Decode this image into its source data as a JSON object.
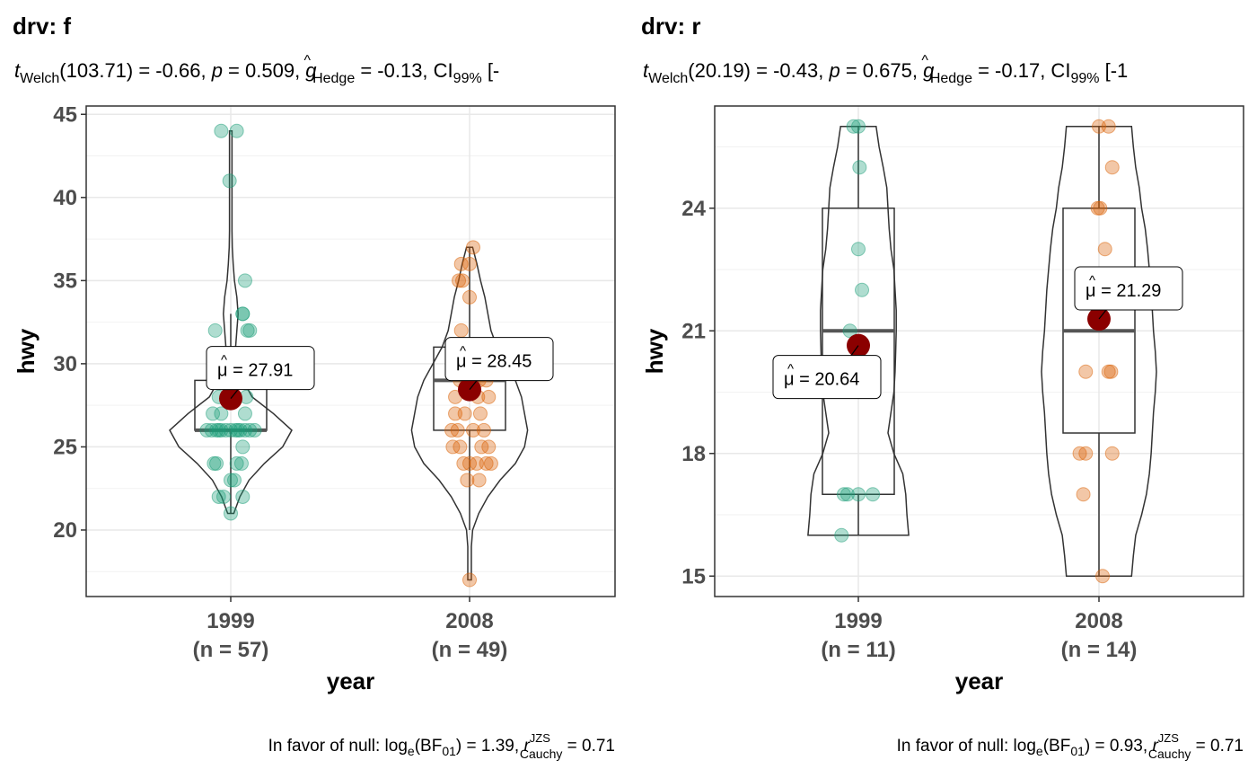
{
  "chart_data": [
    {
      "type": "violin-box-scatter",
      "title": "drv: f",
      "subtitle": {
        "t_label": "t",
        "t_sub": "Welch",
        "stat": "(103.71) = -0.66, ",
        "p_label": "p",
        "p_val": " = 0.509, ",
        "g_label": "g",
        "g_hat": "^",
        "g_sub": "Hedge",
        "g_val": " = -0.13, CI",
        "ci_sub": "99%",
        "ci_tail": " [-"
      },
      "caption": {
        "prefix": "In favor of null: log",
        "log_sub": "e",
        "bf": "(BF",
        "bf_sub": "01",
        "bf_val": ") = 1.39, ",
        "r": "r",
        "r_sup": "JZS",
        "r_sub": "Cauchy",
        "r_val": " = 0.71"
      },
      "xlabel": "year",
      "ylabel": "hwy",
      "ylim": [
        16,
        45.5
      ],
      "yticks": [
        20,
        25,
        30,
        35,
        40,
        45
      ],
      "categories": [
        "1999",
        "2008"
      ],
      "category_n": [
        "(n = 57)",
        "(n = 49)"
      ],
      "colors": [
        "#1B9E77",
        "#D95F02"
      ],
      "mean_color": "#8B0000",
      "groups": [
        {
          "name": "1999",
          "box": {
            "q1": 26,
            "median": 26,
            "q3": 29,
            "lower": 21,
            "upper": 33
          },
          "mean": 27.91,
          "mean_label": "27.91",
          "violin": [
            [
              21,
              0.05
            ],
            [
              22,
              0.15
            ],
            [
              23,
              0.3
            ],
            [
              24,
              0.55
            ],
            [
              25,
              0.85
            ],
            [
              26,
              1.0
            ],
            [
              27,
              0.7
            ],
            [
              28,
              0.35
            ],
            [
              29,
              0.2
            ],
            [
              30,
              0.1
            ],
            [
              31,
              0.08
            ],
            [
              32,
              0.1
            ],
            [
              33,
              0.12
            ],
            [
              34,
              0.1
            ],
            [
              35,
              0.06
            ],
            [
              36,
              0.04
            ],
            [
              37,
              0.025
            ],
            [
              38,
              0.02
            ],
            [
              39,
              0.02
            ],
            [
              40,
              0.02
            ],
            [
              41,
              0.02
            ],
            [
              42,
              0.02
            ],
            [
              43,
              0.02
            ],
            [
              44,
              0.02
            ]
          ],
          "points": [
            [
              -0.08,
              44
            ],
            [
              0.05,
              44
            ],
            [
              -0.01,
              41
            ],
            [
              0.12,
              35
            ],
            [
              0.1,
              33
            ],
            [
              0.1,
              33
            ],
            [
              0.16,
              32
            ],
            [
              0.14,
              32
            ],
            [
              -0.13,
              32
            ],
            [
              0.05,
              29
            ],
            [
              0.08,
              29
            ],
            [
              -0.05,
              29
            ],
            [
              -0.1,
              28
            ],
            [
              0.13,
              28
            ],
            [
              -0.08,
              27
            ],
            [
              0.12,
              27
            ],
            [
              -0.15,
              27
            ],
            [
              -0.2,
              26
            ],
            [
              -0.16,
              26
            ],
            [
              -0.12,
              26
            ],
            [
              -0.08,
              26
            ],
            [
              -0.04,
              26
            ],
            [
              0.0,
              26
            ],
            [
              0.04,
              26
            ],
            [
              0.08,
              26
            ],
            [
              0.12,
              26
            ],
            [
              0.16,
              26
            ],
            [
              0.2,
              26
            ],
            [
              -0.1,
              26
            ],
            [
              0.06,
              26
            ],
            [
              0.1,
              25
            ],
            [
              -0.12,
              24
            ],
            [
              0.05,
              24
            ],
            [
              0.09,
              24
            ],
            [
              -0.14,
              24
            ],
            [
              0.03,
              23
            ],
            [
              0.0,
              23
            ],
            [
              -0.1,
              22
            ],
            [
              -0.06,
              22
            ],
            [
              0.1,
              22
            ],
            [
              0.0,
              21
            ]
          ]
        },
        {
          "name": "2008",
          "box": {
            "q1": 26,
            "median": 29,
            "q3": 31,
            "lower": 20,
            "upper": 37
          },
          "mean": 28.45,
          "mean_label": "28.45",
          "violin": [
            [
              17,
              0.03
            ],
            [
              18,
              0.03
            ],
            [
              19,
              0.03
            ],
            [
              20,
              0.05
            ],
            [
              21,
              0.15
            ],
            [
              22,
              0.3
            ],
            [
              23,
              0.5
            ],
            [
              24,
              0.75
            ],
            [
              25,
              0.9
            ],
            [
              26,
              0.95
            ],
            [
              27,
              0.9
            ],
            [
              28,
              0.85
            ],
            [
              29,
              0.75
            ],
            [
              30,
              0.6
            ],
            [
              31,
              0.45
            ],
            [
              32,
              0.35
            ],
            [
              33,
              0.3
            ],
            [
              34,
              0.25
            ],
            [
              35,
              0.18
            ],
            [
              36,
              0.12
            ],
            [
              37,
              0.05
            ]
          ],
          "points": [
            [
              0.03,
              37
            ],
            [
              -0.07,
              36
            ],
            [
              0.0,
              36
            ],
            [
              -0.06,
              35
            ],
            [
              -0.09,
              35
            ],
            [
              0.0,
              34
            ],
            [
              -0.07,
              32
            ],
            [
              0.05,
              31
            ],
            [
              0.12,
              31
            ],
            [
              0.15,
              30
            ],
            [
              -0.1,
              30
            ],
            [
              0.08,
              29
            ],
            [
              -0.08,
              29
            ],
            [
              0.14,
              29
            ],
            [
              -0.12,
              28
            ],
            [
              0.07,
              28
            ],
            [
              0.16,
              28
            ],
            [
              -0.12,
              27
            ],
            [
              -0.04,
              27
            ],
            [
              0.09,
              27
            ],
            [
              -0.15,
              26
            ],
            [
              0.12,
              26
            ],
            [
              -0.1,
              26
            ],
            [
              0.03,
              26
            ],
            [
              -0.08,
              25
            ],
            [
              0.1,
              25
            ],
            [
              0.16,
              25
            ],
            [
              -0.14,
              25
            ],
            [
              -0.05,
              24
            ],
            [
              0.0,
              24
            ],
            [
              0.06,
              24
            ],
            [
              0.14,
              24
            ],
            [
              0.18,
              24
            ],
            [
              0.08,
              23
            ],
            [
              -0.02,
              23
            ],
            [
              0.0,
              17
            ]
          ]
        }
      ]
    },
    {
      "type": "violin-box-scatter",
      "title": "drv: r",
      "subtitle": {
        "t_label": "t",
        "t_sub": "Welch",
        "stat": "(20.19) = -0.43, ",
        "p_label": "p",
        "p_val": " = 0.675, ",
        "g_label": "g",
        "g_hat": "^",
        "g_sub": "Hedge",
        "g_val": " = -0.17, CI",
        "ci_sub": "99%",
        "ci_tail": " [-1"
      },
      "caption": {
        "prefix": "In favor of null: log",
        "log_sub": "e",
        "bf": "(BF",
        "bf_sub": "01",
        "bf_val": ") = 0.93, ",
        "r": "r",
        "r_sup": "JZS",
        "r_sub": "Cauchy",
        "r_val": " = 0.71"
      },
      "xlabel": "year",
      "ylabel": "hwy",
      "ylim": [
        14.5,
        26.5
      ],
      "yticks": [
        15,
        18,
        21,
        24
      ],
      "categories": [
        "1999",
        "2008"
      ],
      "category_n": [
        "(n = 11)",
        "(n = 14)"
      ],
      "colors": [
        "#1B9E77",
        "#D95F02"
      ],
      "mean_color": "#8B0000",
      "groups": [
        {
          "name": "1999",
          "box": {
            "q1": 17,
            "median": 21,
            "q3": 24,
            "lower": 16,
            "upper": 26
          },
          "mean": 20.64,
          "mean_label": "20.64",
          "violin": [
            [
              16,
              0.85
            ],
            [
              16.5,
              0.82
            ],
            [
              17,
              0.8
            ],
            [
              17.5,
              0.75
            ],
            [
              18,
              0.6
            ],
            [
              18.5,
              0.5
            ],
            [
              19,
              0.55
            ],
            [
              19.5,
              0.6
            ],
            [
              20,
              0.62
            ],
            [
              20.5,
              0.63
            ],
            [
              21,
              0.64
            ],
            [
              21.5,
              0.64
            ],
            [
              22,
              0.62
            ],
            [
              22.5,
              0.6
            ],
            [
              23,
              0.55
            ],
            [
              23.5,
              0.52
            ],
            [
              24,
              0.5
            ],
            [
              24.5,
              0.48
            ],
            [
              25,
              0.42
            ],
            [
              25.5,
              0.35
            ],
            [
              26,
              0.3
            ]
          ],
          "points": [
            [
              -0.04,
              26
            ],
            [
              0.0,
              26
            ],
            [
              0.01,
              25
            ],
            [
              0.0,
              23
            ],
            [
              0.03,
              22
            ],
            [
              -0.07,
              21
            ],
            [
              -0.12,
              17
            ],
            [
              -0.09,
              17
            ],
            [
              0.0,
              17
            ],
            [
              0.12,
              17
            ],
            [
              -0.14,
              16
            ]
          ]
        },
        {
          "name": "2008",
          "box": {
            "q1": 18.5,
            "median": 21,
            "q3": 24,
            "lower": 15,
            "upper": 26
          },
          "mean": 21.29,
          "mean_label": "21.29",
          "violin": [
            [
              15,
              0.55
            ],
            [
              15.5,
              0.58
            ],
            [
              16,
              0.62
            ],
            [
              16.5,
              0.72
            ],
            [
              17,
              0.8
            ],
            [
              17.5,
              0.85
            ],
            [
              18,
              0.88
            ],
            [
              18.5,
              0.9
            ],
            [
              19,
              0.92
            ],
            [
              19.5,
              0.95
            ],
            [
              20,
              0.97
            ],
            [
              20.5,
              0.95
            ],
            [
              21,
              0.92
            ],
            [
              21.5,
              0.9
            ],
            [
              22,
              0.88
            ],
            [
              22.5,
              0.85
            ],
            [
              23,
              0.82
            ],
            [
              23.5,
              0.78
            ],
            [
              24,
              0.72
            ],
            [
              24.5,
              0.68
            ],
            [
              25,
              0.62
            ],
            [
              25.5,
              0.58
            ],
            [
              26,
              0.55
            ]
          ],
          "points": [
            [
              0.0,
              26
            ],
            [
              0.08,
              26
            ],
            [
              0.11,
              25
            ],
            [
              0.01,
              24
            ],
            [
              -0.01,
              24
            ],
            [
              0.05,
              23
            ],
            [
              -0.11,
              20
            ],
            [
              0.08,
              20
            ],
            [
              0.1,
              20
            ],
            [
              -0.16,
              18
            ],
            [
              -0.11,
              18
            ],
            [
              0.11,
              18
            ],
            [
              -0.13,
              17
            ],
            [
              0.03,
              15
            ]
          ]
        }
      ]
    }
  ]
}
